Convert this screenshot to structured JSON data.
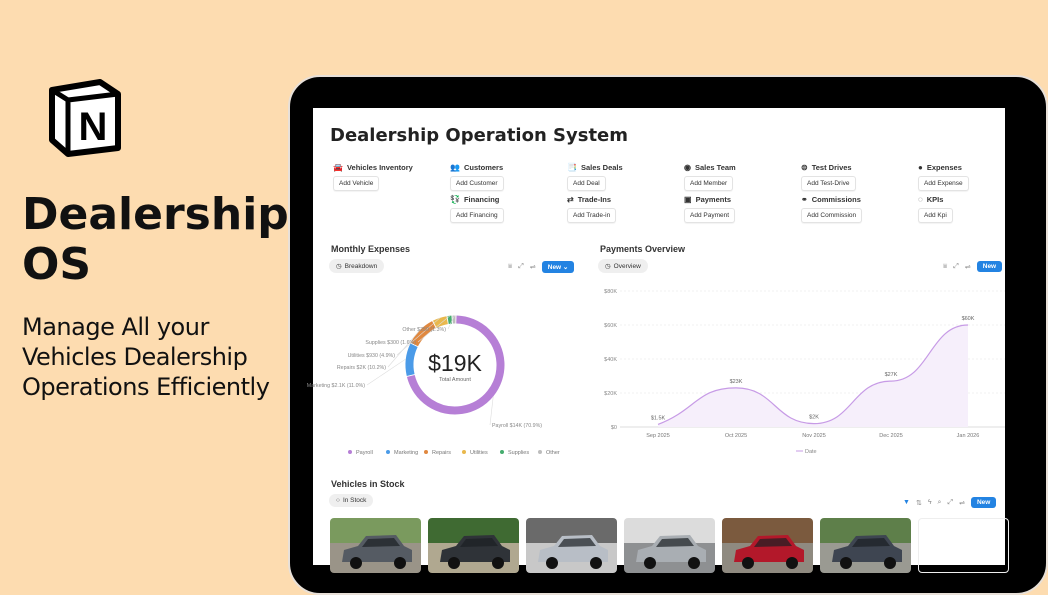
{
  "hero": {
    "title": "Dealership OS",
    "subtitle": "Manage All your Vehicles Dealership Operations Efficiently",
    "logo_letter": "N"
  },
  "page": {
    "title": "Dealership Operation System"
  },
  "quick_links": [
    {
      "label": "Vehicles Inventory",
      "icon": "car-icon",
      "glyph": "🚘",
      "button": "Add Vehicle"
    },
    {
      "label": "Customers",
      "icon": "people-icon",
      "glyph": "👥",
      "button": "Add Customer"
    },
    {
      "label": "Sales Deals",
      "icon": "document-icon",
      "glyph": "📑",
      "button": "Add Deal"
    },
    {
      "label": "Sales Team",
      "icon": "user-circle-icon",
      "glyph": "◉",
      "button": "Add Member"
    },
    {
      "label": "Test Drives",
      "icon": "steering-wheel-icon",
      "glyph": "⊜",
      "button": "Add Test-Drive"
    },
    {
      "label": "Expenses",
      "icon": "coin-icon",
      "glyph": "●",
      "button": "Add Expense"
    },
    {
      "label": "Financing",
      "icon": "money-icon",
      "glyph": "💱",
      "button": "Add Financing"
    },
    {
      "label": "Trade-Ins",
      "icon": "swap-icon",
      "glyph": "⇄",
      "button": "Add Trade-in"
    },
    {
      "label": "Payments",
      "icon": "cash-icon",
      "glyph": "▣",
      "button": "Add Payment"
    },
    {
      "label": "Commissions",
      "icon": "coins-icon",
      "glyph": "⚭",
      "button": "Add Commission"
    },
    {
      "label": "KPIs",
      "icon": "gauge-icon",
      "glyph": "◌",
      "button": "Add Kpi"
    }
  ],
  "expenses": {
    "title": "Monthly Expenses",
    "view": "Breakdown",
    "new_label": "New",
    "total": "$19K",
    "total_label": "Total Amount"
  },
  "payments": {
    "title": "Payments Overview",
    "view": "Overview",
    "new_label": "New"
  },
  "stock": {
    "title": "Vehicles in Stock",
    "view": "In Stock",
    "new_label": "New"
  },
  "chart_data": [
    {
      "type": "pie",
      "style": "donut",
      "center_value": "$19K",
      "center_label": "Total Amount",
      "legend": "bottom",
      "slices": [
        {
          "name": "Payroll",
          "value": 14000,
          "label": "Payroll $14K (70.9%)",
          "percent": 70.9,
          "color": "#b67fd6"
        },
        {
          "name": "Marketing",
          "value": 2100,
          "label": "Marketing $2.1K (11.0%)",
          "percent": 11.0,
          "color": "#4b9be8"
        },
        {
          "name": "Repairs",
          "value": 2000,
          "label": "Repairs $2K (10.2%)",
          "percent": 10.2,
          "color": "#e0883f"
        },
        {
          "name": "Utilities",
          "value": 930,
          "label": "Utilities $930 (4.9%)",
          "percent": 4.9,
          "color": "#e9b84c"
        },
        {
          "name": "Supplies",
          "value": 300,
          "label": "Supplies $300 (1.6%)",
          "percent": 1.6,
          "color": "#45ac6e"
        },
        {
          "name": "Other",
          "value": 250,
          "label": "Other $250 (1.3%)",
          "percent": 1.3,
          "color": "#bdbdbd"
        }
      ]
    },
    {
      "type": "area",
      "smooth": true,
      "legend": "bottom",
      "series_name": "Date",
      "color": "#c79be6",
      "categories": [
        "Sep 2025",
        "Oct 2025",
        "Nov 2025",
        "Dec 2025",
        "Jan 2026"
      ],
      "values": [
        1500,
        23000,
        2000,
        27000,
        60000
      ],
      "data_labels": [
        "$1.5K",
        "$23K",
        "$2K",
        "$27K",
        "$60K"
      ],
      "ylim": [
        0,
        80000
      ],
      "yticks": [
        "$0",
        "$20K",
        "$40K",
        "$60K",
        "$80K"
      ],
      "grid": true
    }
  ],
  "vehicles": [
    {
      "name": "Gray SUV",
      "sky": "#7a9a5e",
      "body": "#555b63",
      "ground": "#9a9488"
    },
    {
      "name": "Black pickup truck",
      "sky": "#3f6a32",
      "body": "#2f3338",
      "ground": "#b0a890"
    },
    {
      "name": "Silver sedan",
      "sky": "#6a6a6a",
      "body": "#b8bec6",
      "ground": "#c8c8c8"
    },
    {
      "name": "Silver sedan showroom",
      "sky": "#dcdcdc",
      "body": "#a9aeb3",
      "ground": "#8e9092"
    },
    {
      "name": "Red sedan",
      "sky": "#7b5a3e",
      "body": "#b3182a",
      "ground": "#8f8a80"
    },
    {
      "name": "Dark gray sedan",
      "sky": "#5e7f4a",
      "body": "#3e4551",
      "ground": "#9a9a92"
    }
  ]
}
